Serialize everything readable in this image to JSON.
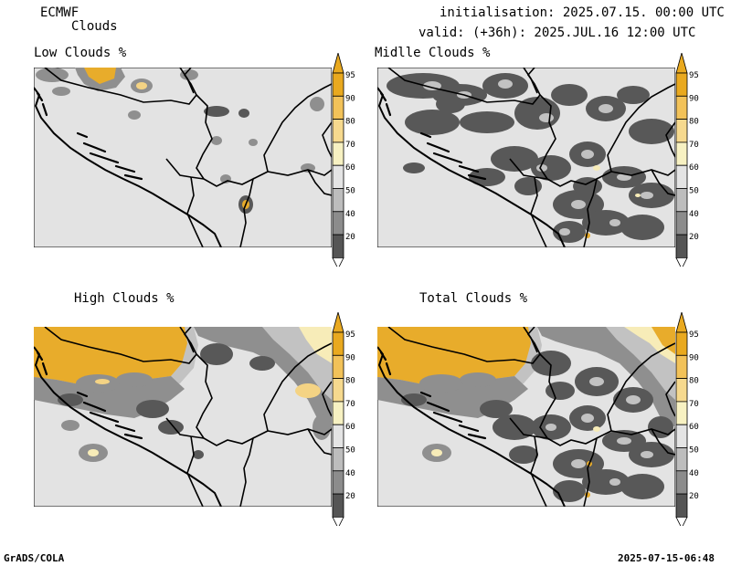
{
  "header": {
    "model": "ECMWF",
    "product": "Clouds",
    "init": "initialisation: 2025.07.15. 00:00 UTC",
    "valid": "valid: (+36h): 2025.JUL.16 12:00 UTC"
  },
  "panels": [
    {
      "id": "low",
      "title": "Low Clouds %"
    },
    {
      "id": "mid",
      "title": "Midlle Clouds %"
    },
    {
      "id": "high",
      "title": "High Clouds %"
    },
    {
      "id": "total",
      "title": "Total Clouds %"
    }
  ],
  "legend": {
    "levels": [
      "95",
      "90",
      "80",
      "70",
      "60",
      "50",
      "40",
      "20"
    ],
    "colors": [
      "#e9a91f",
      "#f2c259",
      "#f6d98e",
      "#f7f1c2",
      "#e4e4e4",
      "#bdbdbd",
      "#8c8c8c",
      "#555555"
    ]
  },
  "map_colors": {
    "background": "#e3e3e3",
    "clear": "#e3e3e3",
    "cloud_dark": "#585858",
    "cloud_mid": "#8f8f8f",
    "cloud_light": "#c2c2c2",
    "high_orange": "#e8ac2b",
    "high_light": "#f4d384",
    "high_pale": "#f7ecb8"
  },
  "footer": {
    "left": "GrADS/COLA",
    "right": "2025-07-15-06:48"
  }
}
